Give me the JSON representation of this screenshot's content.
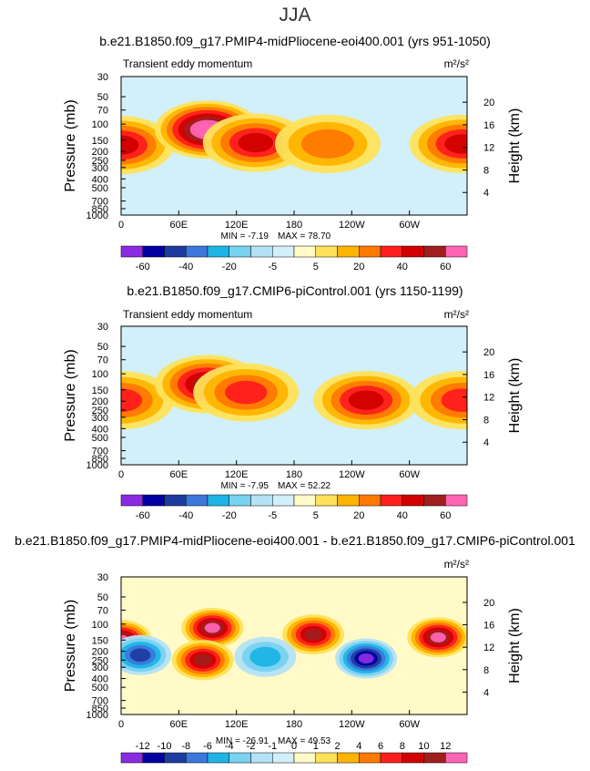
{
  "page_title": "JJA",
  "chart_data": [
    {
      "type": "heatmap",
      "title": "b.e21.B1850.f09_g17.PMIP4-midPliocene-eoi400.001 (yrs 951-1050)",
      "subtitle": "Transient eddy momentum",
      "units": "m²/s²",
      "ylabel": "Pressure (mb)",
      "y2label": "Height (km)",
      "x_ticks": [
        "0",
        "60E",
        "120E",
        "180",
        "120W",
        "60W"
      ],
      "x_tick_values": [
        0,
        60,
        120,
        180,
        240,
        300
      ],
      "xlim": [
        0,
        360
      ],
      "y_ticks": [
        30,
        50,
        70,
        100,
        150,
        200,
        250,
        300,
        400,
        500,
        700,
        850,
        1000
      ],
      "ylim": [
        1000,
        30
      ],
      "y2_ticks": [
        4,
        8,
        12,
        16,
        20
      ],
      "min_label": "MIN =   -7.19",
      "max_label": "MAX =   78.70",
      "colorbar_levels": [
        "-60",
        "-40",
        "-20",
        "-5",
        "5",
        "20",
        "40",
        "60"
      ],
      "features": [
        {
          "lon": 0,
          "p": 170,
          "value": 40
        },
        {
          "lon": 90,
          "p": 115,
          "value": 75
        },
        {
          "lon": 140,
          "p": 160,
          "value": 45
        },
        {
          "lon": 215,
          "p": 165,
          "value": 25
        },
        {
          "lon": 355,
          "p": 165,
          "value": 45
        }
      ]
    },
    {
      "type": "heatmap",
      "title": "b.e21.B1850.f09_g17.CMIP6-piControl.001 (yrs 1150-1199)",
      "subtitle": "Transient eddy momentum",
      "units": "m²/s²",
      "ylabel": "Pressure (mb)",
      "y2label": "Height (km)",
      "x_ticks": [
        "0",
        "60E",
        "120E",
        "180",
        "120W",
        "60W"
      ],
      "x_tick_values": [
        0,
        60,
        120,
        180,
        240,
        300
      ],
      "xlim": [
        0,
        360
      ],
      "y_ticks": [
        30,
        50,
        70,
        100,
        150,
        200,
        250,
        300,
        400,
        500,
        700,
        850,
        1000
      ],
      "ylim": [
        1000,
        30
      ],
      "y2_ticks": [
        4,
        8,
        12,
        16,
        20
      ],
      "min_label": "MIN =   -7.95",
      "max_label": "MAX =   52.22",
      "colorbar_levels": [
        "-60",
        "-40",
        "-20",
        "-5",
        "5",
        "20",
        "40",
        "60"
      ],
      "features": [
        {
          "lon": 0,
          "p": 195,
          "value": 30
        },
        {
          "lon": 90,
          "p": 130,
          "value": 50
        },
        {
          "lon": 130,
          "p": 160,
          "value": 30
        },
        {
          "lon": 255,
          "p": 195,
          "value": 45
        },
        {
          "lon": 355,
          "p": 195,
          "value": 35
        }
      ]
    },
    {
      "type": "heatmap",
      "title": "b.e21.B1850.f09_g17.PMIP4-midPliocene-eoi400.001 - b.e21.B1850.f09_g17.CMIP6-piControl.001",
      "subtitle": "",
      "units": "m²/s²",
      "ylabel": "Pressure (mb)",
      "y2label": "Height (km)",
      "x_ticks": [
        "0",
        "60E",
        "120E",
        "180",
        "120W",
        "60W"
      ],
      "x_tick_values": [
        0,
        60,
        120,
        180,
        240,
        300
      ],
      "xlim": [
        0,
        360
      ],
      "y_ticks": [
        30,
        50,
        70,
        100,
        150,
        200,
        250,
        300,
        400,
        500,
        700,
        850,
        1000
      ],
      "ylim": [
        1000,
        30
      ],
      "y2_ticks": [
        4,
        8,
        12,
        16,
        20
      ],
      "min_label": "MIN =  -26.91",
      "max_label": "MAX =   49.53",
      "colorbar_levels": [
        "-12",
        "-10",
        "-8",
        "-6",
        "-4",
        "-2",
        "-1",
        "0",
        "1",
        "2",
        "4",
        "6",
        "8",
        "10",
        "12"
      ],
      "features": [
        {
          "lon": 0,
          "p": 150,
          "value": 14
        },
        {
          "lon": 95,
          "p": 110,
          "value": 20
        },
        {
          "lon": 200,
          "p": 130,
          "value": 10
        },
        {
          "lon": 330,
          "p": 140,
          "value": 14
        },
        {
          "lon": 255,
          "p": 240,
          "value": -20
        },
        {
          "lon": 20,
          "p": 220,
          "value": -8
        },
        {
          "lon": 150,
          "p": 230,
          "value": -4
        },
        {
          "lon": 85,
          "p": 250,
          "value": 10
        }
      ]
    }
  ],
  "colors": {
    "colorbar": [
      "#8a2be2",
      "#0000a0",
      "#1e3ca0",
      "#3c78dc",
      "#1eb4e6",
      "#78d2f0",
      "#b4e1f5",
      "#d2f0fa",
      "#fffac8",
      "#ffe15a",
      "#ffb400",
      "#ff7800",
      "#ff1e1e",
      "#d20000",
      "#a01e1e",
      "#ff64b4"
    ]
  }
}
